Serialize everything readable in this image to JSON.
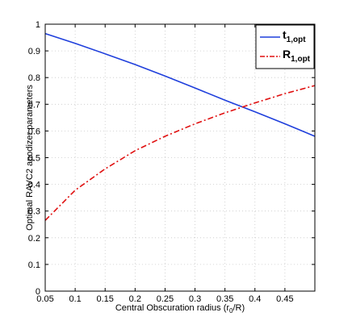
{
  "chart_data": {
    "type": "line",
    "title": "",
    "xlabel_main": "Central Obscuration radius (r",
    "xlabel_sub": "0",
    "xlabel_tail": "/R)",
    "ylabel": "Optimal RAVC2 apodizer parameters",
    "xlim": [
      0.05,
      0.5
    ],
    "ylim": [
      0,
      1
    ],
    "x_ticks": [
      "0.05",
      "0.1",
      "0.15",
      "0.2",
      "0.25",
      "0.3",
      "0.35",
      "0.4",
      "0.45"
    ],
    "y_ticks": [
      "0",
      "0.1",
      "0.2",
      "0.3",
      "0.4",
      "0.5",
      "0.6",
      "0.7",
      "0.8",
      "0.9",
      "1"
    ],
    "grid": true,
    "legend_position": "top-right",
    "series": [
      {
        "name_main": "t",
        "name_sub": "1,opt",
        "color": "#1f3fdc",
        "style": "solid",
        "x": [
          0.05,
          0.1,
          0.15,
          0.2,
          0.25,
          0.3,
          0.35,
          0.4,
          0.45,
          0.5
        ],
        "y": [
          0.965,
          0.928,
          0.889,
          0.849,
          0.806,
          0.761,
          0.715,
          0.672,
          0.627,
          0.58
        ]
      },
      {
        "name_main": "R",
        "name_sub": "1,opt",
        "color": "#e01010",
        "style": "dashdot",
        "x": [
          0.05,
          0.1,
          0.15,
          0.2,
          0.25,
          0.3,
          0.35,
          0.4,
          0.45,
          0.5
        ],
        "y": [
          0.265,
          0.378,
          0.458,
          0.526,
          0.58,
          0.627,
          0.668,
          0.705,
          0.74,
          0.77
        ]
      }
    ]
  }
}
